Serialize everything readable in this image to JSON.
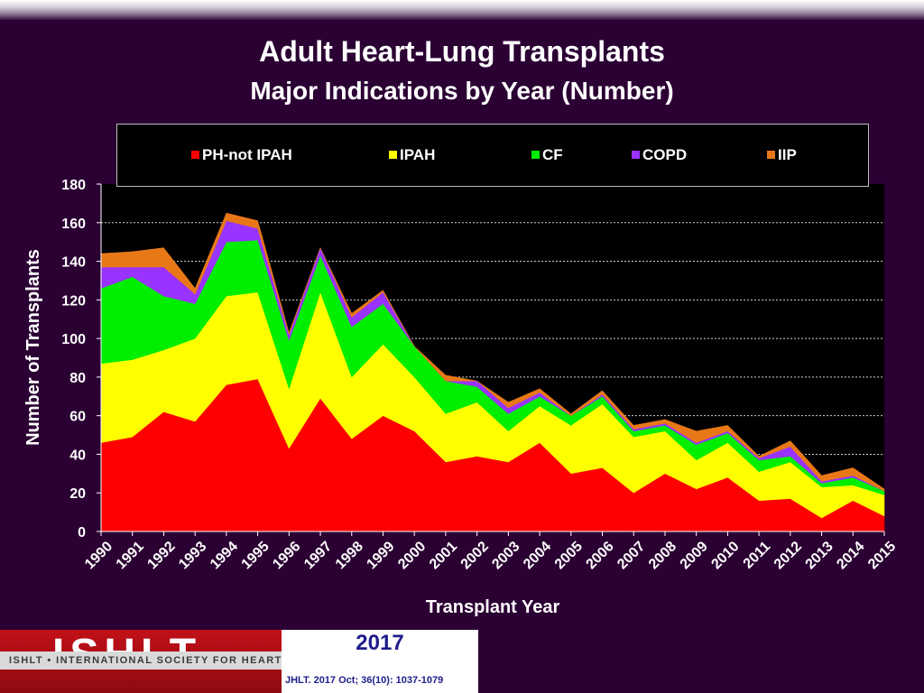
{
  "chart_data": {
    "type": "area",
    "stacked": true,
    "title": "Adult Heart-Lung Transplants",
    "subtitle": "Major Indications by Year (Number)",
    "xlabel": "Transplant Year",
    "ylabel": "Number of Transplants",
    "ylim": [
      0,
      180
    ],
    "yticks": [
      0,
      20,
      40,
      60,
      80,
      100,
      120,
      140,
      160,
      180
    ],
    "grid": true,
    "legend_position": "top",
    "categories": [
      "1990",
      "1991",
      "1992",
      "1993",
      "1994",
      "1995",
      "1996",
      "1997",
      "1998",
      "1999",
      "2000",
      "2001",
      "2002",
      "2003",
      "2004",
      "2005",
      "2006",
      "2007",
      "2008",
      "2009",
      "2010",
      "2011",
      "2012",
      "2013",
      "2014",
      "2015"
    ],
    "series": [
      {
        "name": "PH-not IPAH",
        "color": "#ff0000",
        "values": [
          46,
          49,
          62,
          57,
          76,
          79,
          43,
          69,
          48,
          60,
          52,
          36,
          39,
          36,
          46,
          30,
          33,
          20,
          30,
          22,
          28,
          16,
          17,
          7,
          16,
          8
        ]
      },
      {
        "name": "IPAH",
        "color": "#ffff00",
        "values": [
          41,
          40,
          32,
          43,
          46,
          45,
          31,
          55,
          32,
          37,
          28,
          25,
          28,
          16,
          19,
          25,
          33,
          29,
          22,
          15,
          18,
          15,
          19,
          16,
          8,
          11
        ]
      },
      {
        "name": "CF",
        "color": "#00ee00",
        "values": [
          39,
          43,
          28,
          18,
          28,
          27,
          25,
          19,
          26,
          21,
          16,
          17,
          8,
          9,
          5,
          5,
          4,
          3,
          3,
          8,
          5,
          6,
          3,
          2,
          4,
          2
        ]
      },
      {
        "name": "COPD",
        "color": "#9933ff",
        "values": [
          11,
          5,
          15,
          5,
          11,
          6,
          3,
          4,
          5,
          6,
          0,
          0,
          3,
          3,
          2,
          0,
          1,
          1,
          1,
          1,
          1,
          1,
          5,
          1,
          1,
          0
        ]
      },
      {
        "name": "IIP",
        "color": "#e87817",
        "values": [
          7,
          8,
          10,
          3,
          4,
          4,
          1,
          0,
          2,
          1,
          0,
          3,
          0,
          3,
          2,
          1,
          2,
          2,
          2,
          6,
          3,
          1,
          3,
          3,
          4,
          1
        ]
      }
    ]
  },
  "footer": {
    "logo_letters": "ISHLT",
    "logo_tagline": "ISHLT • INTERNATIONAL SOCIETY FOR HEART AND LUNG TRANSPLANTATION",
    "year": "2017",
    "citation": "JHLT. 2017 Oct; 36(10): 1037-1079"
  }
}
